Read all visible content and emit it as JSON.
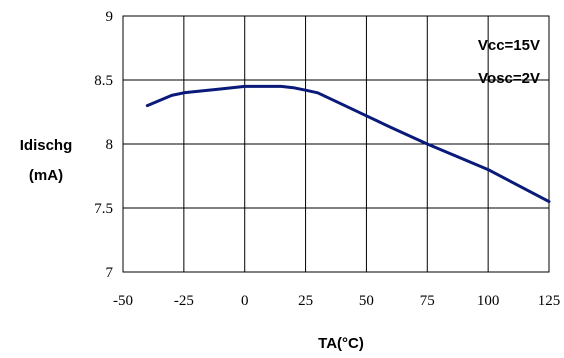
{
  "chart_data": {
    "type": "line",
    "title": "",
    "xlabel": "TA(°C)",
    "ylabel_lines": [
      "Idischg",
      "(mA)"
    ],
    "xlim": [
      -50,
      125
    ],
    "ylim": [
      7,
      9
    ],
    "x_ticks": [
      -50,
      -25,
      0,
      25,
      50,
      75,
      100,
      125
    ],
    "x_tick_labels": [
      "-50",
      "-25",
      "0",
      "25",
      "50",
      "75",
      "100",
      "125"
    ],
    "y_ticks": [
      7,
      7.5,
      8,
      8.5,
      9
    ],
    "y_tick_labels": [
      "7",
      "7.5",
      "8",
      "8.5",
      "9"
    ],
    "grid": true,
    "legend": "none",
    "annotations": [
      "Vcc=15V",
      "Vosc=2V"
    ],
    "series": [
      {
        "color": "#0a1a7a",
        "x": [
          -40,
          -35,
          -30,
          -25,
          -20,
          -10,
          0,
          10,
          15,
          20,
          25,
          30,
          40,
          50,
          60,
          75,
          90,
          100,
          110,
          125
        ],
        "y": [
          8.3,
          8.34,
          8.38,
          8.4,
          8.41,
          8.43,
          8.45,
          8.45,
          8.45,
          8.44,
          8.42,
          8.4,
          8.31,
          8.22,
          8.13,
          8.0,
          7.88,
          7.8,
          7.7,
          7.55
        ]
      }
    ]
  }
}
